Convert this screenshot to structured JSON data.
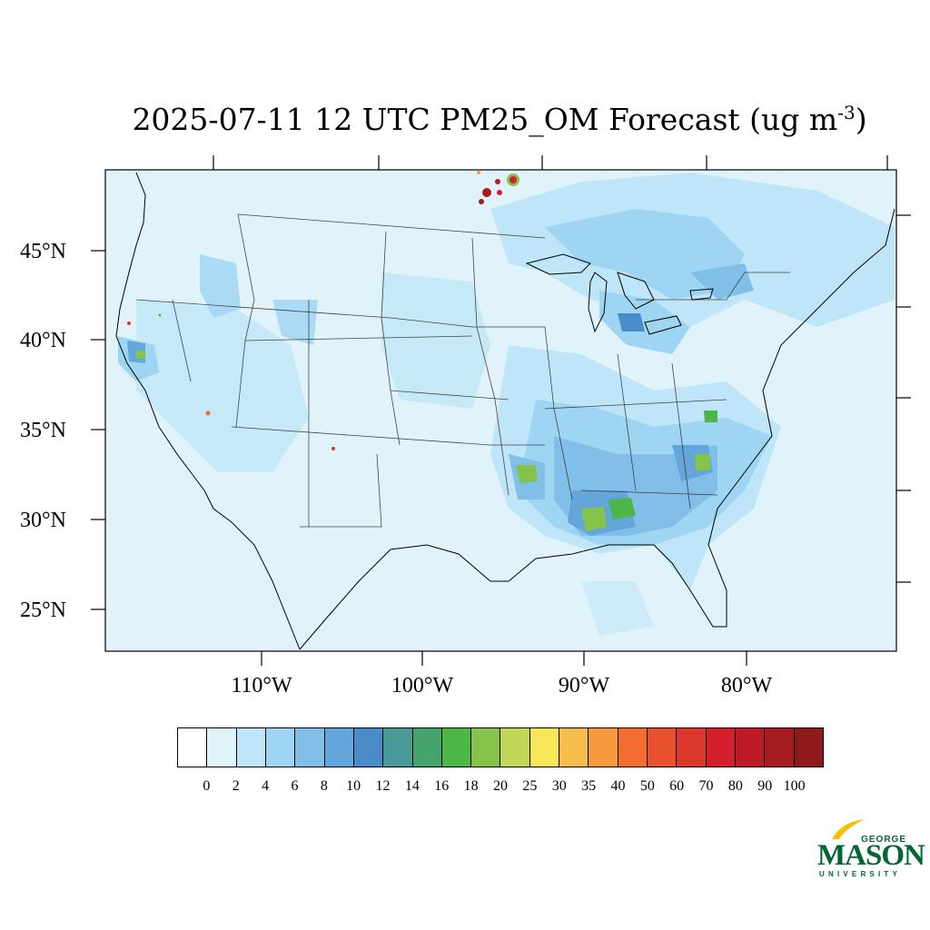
{
  "title": {
    "text": "2025-07-11 12 UTC PM25_OM Forecast (ug m",
    "superscript": "-3",
    "suffix": ")"
  },
  "map": {
    "background_color": "#e0f3fb",
    "latitude_labels": [
      "45°N",
      "40°N",
      "35°N",
      "30°N",
      "25°N"
    ],
    "longitude_labels": [
      "110°W",
      "100°W",
      "90°W",
      "80°W"
    ]
  },
  "colorbar": {
    "colors": [
      "#ffffff",
      "#e0f3fb",
      "#bfe6f8",
      "#9dd5f3",
      "#82bfe8",
      "#64a5da",
      "#4a8bc8",
      "#4a9a9a",
      "#45a36b",
      "#4cb649",
      "#84c44c",
      "#c2d657",
      "#f7e65a",
      "#f7bc4a",
      "#f79a3d",
      "#f46d30",
      "#e8502f",
      "#dc372c",
      "#d21f2b",
      "#bd1a26",
      "#a51b1f",
      "#8f1a1a"
    ],
    "labels": [
      "0",
      "2",
      "4",
      "6",
      "8",
      "10",
      "12",
      "14",
      "16",
      "18",
      "20",
      "25",
      "30",
      "35",
      "40",
      "50",
      "60",
      "70",
      "80",
      "90",
      "100"
    ]
  },
  "logo": {
    "line1": "GEORGE",
    "line2": "MASON",
    "line3": "UNIVERSITY"
  }
}
